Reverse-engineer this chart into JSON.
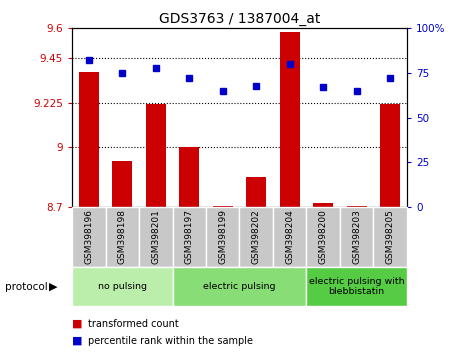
{
  "title": "GDS3763 / 1387004_at",
  "samples": [
    "GSM398196",
    "GSM398198",
    "GSM398201",
    "GSM398197",
    "GSM398199",
    "GSM398202",
    "GSM398204",
    "GSM398200",
    "GSM398203",
    "GSM398205"
  ],
  "transformed_count": [
    9.38,
    8.93,
    9.22,
    9.0,
    8.705,
    8.85,
    9.58,
    8.72,
    8.705,
    9.22
  ],
  "percentile_rank": [
    82,
    75,
    78,
    72,
    65,
    68,
    80,
    67,
    65,
    72
  ],
  "ylim_left": [
    8.7,
    9.6
  ],
  "ylim_right": [
    0,
    100
  ],
  "yticks_left": [
    8.7,
    9.0,
    9.225,
    9.45,
    9.6
  ],
  "ytick_labels_left": [
    "8.7",
    "9",
    "9.225",
    "9.45",
    "9.6"
  ],
  "yticks_right": [
    0,
    25,
    50,
    75,
    100
  ],
  "ytick_labels_right": [
    "0",
    "25",
    "50",
    "75",
    "100%"
  ],
  "hlines": [
    9.0,
    9.225,
    9.45
  ],
  "bar_color": "#cc0000",
  "dot_color": "#0000cc",
  "bar_width": 0.6,
  "groups": [
    {
      "label": "no pulsing",
      "start": 0,
      "end": 3,
      "color": "#bbeeaa"
    },
    {
      "label": "electric pulsing",
      "start": 3,
      "end": 7,
      "color": "#88dd77"
    },
    {
      "label": "electric pulsing with\nblebbistatin",
      "start": 7,
      "end": 10,
      "color": "#55cc44"
    }
  ],
  "protocol_label": "protocol",
  "legend_items": [
    {
      "color": "#cc0000",
      "label": "transformed count"
    },
    {
      "color": "#0000cc",
      "label": "percentile rank within the sample"
    }
  ],
  "tick_label_color_left": "#cc0000",
  "tick_label_color_right": "#0000cc",
  "background_color": "#ffffff",
  "plot_bg_color": "#ffffff",
  "xtick_bg_color": "#c8c8c8"
}
